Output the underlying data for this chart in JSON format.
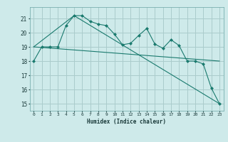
{
  "xlabel": "Humidex (Indice chaleur)",
  "background_color": "#ceeaea",
  "grid_color": "#aacccc",
  "line_color": "#1a7a6e",
  "x_values": [
    0,
    1,
    2,
    3,
    4,
    5,
    6,
    7,
    8,
    9,
    10,
    11,
    12,
    13,
    14,
    15,
    16,
    17,
    18,
    19,
    20,
    21,
    22,
    23
  ],
  "series1": [
    18.0,
    19.0,
    19.0,
    19.0,
    20.5,
    21.2,
    21.2,
    20.8,
    20.6,
    20.5,
    19.9,
    19.15,
    19.25,
    19.8,
    20.3,
    19.2,
    18.9,
    19.5,
    19.1,
    18.0,
    18.0,
    17.8,
    16.1,
    15.0
  ],
  "series2_x": [
    0,
    23
  ],
  "series2_y": [
    19.0,
    18.0
  ],
  "series3_x": [
    0,
    5,
    23
  ],
  "series3_y": [
    19.0,
    21.2,
    15.0
  ],
  "ylim": [
    14.5,
    21.8
  ],
  "xlim": [
    -0.5,
    23.5
  ],
  "yticks": [
    15,
    16,
    17,
    18,
    19,
    20,
    21
  ],
  "xticks": [
    0,
    1,
    2,
    3,
    4,
    5,
    6,
    7,
    8,
    9,
    10,
    11,
    12,
    13,
    14,
    15,
    16,
    17,
    18,
    19,
    20,
    21,
    22,
    23
  ]
}
